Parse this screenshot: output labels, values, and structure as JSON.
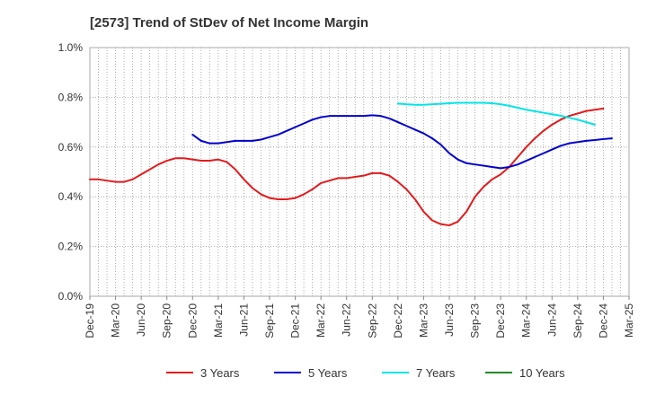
{
  "chart_data": {
    "type": "line",
    "title": "[2573]  Trend of StDev of Net Income Margin",
    "xlabel": "",
    "ylabel": "",
    "x_ticks": [
      "Dec-19",
      "Mar-20",
      "Jun-20",
      "Sep-20",
      "Dec-20",
      "Mar-21",
      "Jun-21",
      "Sep-21",
      "Dec-21",
      "Mar-22",
      "Jun-22",
      "Sep-22",
      "Dec-22",
      "Mar-23",
      "Jun-23",
      "Sep-23",
      "Dec-23",
      "Mar-24",
      "Jun-24",
      "Sep-24",
      "Dec-24",
      "Mar-25"
    ],
    "y_ticks": [
      "0.0%",
      "0.2%",
      "0.4%",
      "0.6%",
      "0.8%",
      "1.0%"
    ],
    "ylim": [
      0,
      1.0
    ],
    "y_unit": "%",
    "grid": true,
    "legend_position": "bottom",
    "series": [
      {
        "name": "3 Years",
        "color": "#e31a1c",
        "start": "Dec-19",
        "values": [
          0.47,
          0.47,
          0.465,
          0.46,
          0.46,
          0.47,
          0.49,
          0.51,
          0.53,
          0.545,
          0.555,
          0.555,
          0.55,
          0.545,
          0.545,
          0.55,
          0.54,
          0.51,
          0.47,
          0.435,
          0.41,
          0.395,
          0.39,
          0.39,
          0.395,
          0.41,
          0.43,
          0.455,
          0.465,
          0.475,
          0.475,
          0.48,
          0.485,
          0.495,
          0.495,
          0.485,
          0.46,
          0.43,
          0.39,
          0.34,
          0.305,
          0.29,
          0.285,
          0.3,
          0.34,
          0.4,
          0.44,
          0.47,
          0.49,
          0.52,
          0.56,
          0.6,
          0.635,
          0.665,
          0.69,
          0.71,
          0.725,
          0.735,
          0.745,
          0.75,
          0.755
        ]
      },
      {
        "name": "5 Years",
        "color": "#0000cc",
        "start": "Dec-20",
        "values": [
          0.65,
          0.625,
          0.615,
          0.615,
          0.62,
          0.625,
          0.625,
          0.625,
          0.63,
          0.64,
          0.65,
          0.665,
          0.68,
          0.695,
          0.71,
          0.72,
          0.725,
          0.725,
          0.725,
          0.725,
          0.725,
          0.728,
          0.725,
          0.715,
          0.7,
          0.685,
          0.67,
          0.655,
          0.635,
          0.61,
          0.575,
          0.55,
          0.535,
          0.53,
          0.525,
          0.52,
          0.515,
          0.52,
          0.53,
          0.545,
          0.56,
          0.575,
          0.59,
          0.605,
          0.615,
          0.62,
          0.625,
          0.628,
          0.632,
          0.635
        ]
      },
      {
        "name": "7 Years",
        "color": "#00e5e5",
        "start": "Dec-22",
        "values": [
          0.775,
          0.772,
          0.77,
          0.77,
          0.772,
          0.774,
          0.776,
          0.778,
          0.778,
          0.778,
          0.778,
          0.776,
          0.772,
          0.766,
          0.758,
          0.75,
          0.744,
          0.738,
          0.732,
          0.726,
          0.718,
          0.71,
          0.7,
          0.69
        ]
      },
      {
        "name": "10 Years",
        "color": "#228b22",
        "start": "Dec-24",
        "values": []
      }
    ]
  }
}
